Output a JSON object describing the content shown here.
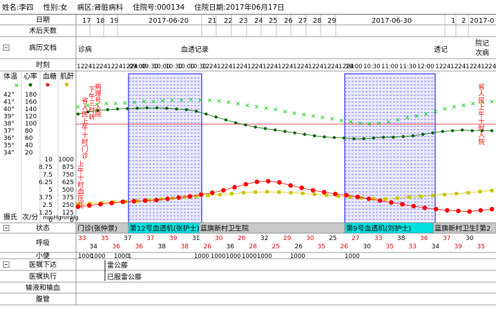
{
  "patient": {
    "name": "姓名:李四",
    "gender": "性别:女",
    "ward": "病区:肾脏病科",
    "admission_no": "住院号:000134",
    "admission_date": "住院日期:2017年06月17日"
  },
  "rows": {
    "date": "日期",
    "post_op_days": "术后天数",
    "records": "病历文档",
    "time": "时刻",
    "intake": "摄氏",
    "unit_per_min": "次/分",
    "unit_mmhg_a": "mmHg",
    "unit_mmhg_b": "mmHg",
    "status": "状态",
    "respiration": "呼吸",
    "urine": "小便",
    "order_issue": "医嘱下达",
    "order_exec": "医嘱执行",
    "infusion": "输液和输血",
    "drainage": "腹管"
  },
  "axis_headers": {
    "temp": "体温",
    "hr": "心率",
    "bp": "血糖",
    "cr": "肌酐"
  },
  "temp_ticks": [
    "42°",
    "41°",
    "40°",
    "39°",
    "38°",
    "37°",
    "36°",
    "35°",
    "34°"
  ],
  "hr_ticks": [
    "180",
    "160",
    "140",
    "120",
    "100",
    "80",
    "60",
    "40",
    "20"
  ],
  "glucose_ticks": [
    "10",
    "8.75",
    "7.5",
    "6.25",
    "5",
    "3.75",
    "2.5",
    "1.25",
    "0"
  ],
  "cr_ticks": [
    "1000",
    "875",
    "750",
    "625",
    "500",
    "375",
    "250",
    "125",
    "0"
  ],
  "day_numbers": [
    "17",
    "18",
    "19",
    "21",
    "22",
    "23",
    "24",
    "25",
    "26",
    "27",
    "28",
    "29",
    "1",
    "2"
  ],
  "dates": [
    "2017-06-20",
    "2017-06-30",
    "2017-0"
  ],
  "hour_ticks": [
    "12",
    "24"
  ],
  "dialysis_times_1": [
    "09:00",
    "09:30",
    "10:00",
    "10:30",
    "10:00",
    "10:30"
  ],
  "dialysis_times_2": [
    "10:00",
    "10:30",
    "11:00",
    "11:30",
    "12:00"
  ],
  "record_labels": {
    "clinic": "诊病",
    "dialysis": "血透记录",
    "dialysis2": "透记",
    "ward_record_a": "院记",
    "ward_record_b": "次病"
  },
  "annotations": {
    "left": "省人民上午十时门诊",
    "left2": "下午三时转",
    "left3": "病理号入院",
    "left4": "上午十时血压花",
    "right": "省人民上午十时入院"
  },
  "status_segments": [
    {
      "label": "门诊(张仲景)",
      "bg": "#c8c8c8"
    },
    {
      "label": "第12号血透机(张护士)",
      "bg": "#00e0e0"
    },
    {
      "label": "蓝旗新村卫生院",
      "bg": "#c8c8c8"
    },
    {
      "label": "第9号血透机(刘护士)",
      "bg": "#00e0e0"
    },
    {
      "label": "蓝旗新村卫生院",
      "bg": "#c8c8c8"
    },
    {
      "label": "第2",
      "bg": "#c8c8c8"
    }
  ],
  "respiration_values": [
    "33",
    "34",
    "35",
    "36",
    "37",
    "36",
    "37",
    "38",
    "39",
    "38",
    "31",
    "26",
    "30",
    "36",
    "26",
    "28",
    "32",
    "25",
    "29",
    "26",
    "30",
    "35",
    "25",
    "26",
    "27",
    "30",
    "33",
    "35",
    "38",
    "33",
    "36",
    "34",
    "37",
    "39",
    "30",
    "35"
  ],
  "urine_values": [
    "1000",
    "1000",
    "1000",
    "1",
    "1000",
    "1000",
    "1000",
    "1000",
    "1000",
    "1000",
    "1000"
  ],
  "orders": {
    "issue": "雷公藤",
    "exec": "已服雷公藤"
  },
  "colors": {
    "temp": "#00d000",
    "hr": "#006000",
    "glucose": "#ff0000",
    "creatinine": "#c8c800",
    "dialysis_bg": "#0000ff",
    "ref_line": "#ff0000",
    "cyan": "#00e0e0"
  },
  "chart_data": {
    "type": "line",
    "title": "",
    "series": [
      {
        "name": "体温",
        "marker": "x",
        "values": [
          40.3,
          40.5,
          40.6,
          40.7,
          40.7,
          40.8,
          40.9,
          41,
          41,
          41.1,
          41.2,
          41.2,
          41.3,
          41.2,
          41.2,
          41.1,
          40.9,
          40.7,
          40.5,
          40.3,
          40.1,
          39.9,
          39.6,
          39.4,
          39.2,
          39,
          38.8,
          38.6,
          38.4,
          38.2,
          38,
          37.9,
          38,
          38.2,
          38.5,
          38.8,
          39,
          39.3,
          39.6,
          40,
          40.3,
          40.5,
          40.7,
          40.9,
          41
        ]
      },
      {
        "name": "心率",
        "marker": "dot",
        "values": [
          126,
          132,
          136,
          138,
          140,
          141,
          142,
          143,
          143,
          142,
          140,
          138,
          134,
          126,
          118,
          110,
          102,
          96,
          90,
          86,
          82,
          78,
          74,
          70,
          66,
          63,
          61,
          60,
          58,
          58,
          60,
          62,
          62,
          64,
          66,
          70,
          74,
          78,
          80,
          82,
          80,
          80,
          80
        ]
      },
      {
        "name": "血糖",
        "marker": "dot",
        "values": [
          2.2,
          2.4,
          2.6,
          2.8,
          3,
          3.1,
          3.2,
          3.3,
          3.5,
          3.7,
          3.9,
          4.2,
          4.5,
          4.9,
          5.4,
          5.9,
          6.3,
          6.4,
          6.2,
          5.7,
          5.3,
          4.9,
          4.6,
          4.3,
          4.1,
          3.8,
          3.5,
          3.2,
          2.9,
          2.6,
          2.3,
          2,
          1.8,
          1.6,
          1.5,
          1.4,
          1.6,
          1.8
        ]
      },
      {
        "name": "肌酐",
        "marker": "square",
        "values": [
          260,
          270,
          285,
          295,
          305,
          315,
          330,
          345,
          360,
          375,
          390,
          405,
          420,
          435,
          450,
          460,
          465,
          460,
          450,
          440,
          425,
          410,
          395,
          380,
          365,
          350,
          345,
          360,
          375,
          390,
          405,
          420,
          435,
          450,
          470,
          485
        ]
      }
    ]
  }
}
